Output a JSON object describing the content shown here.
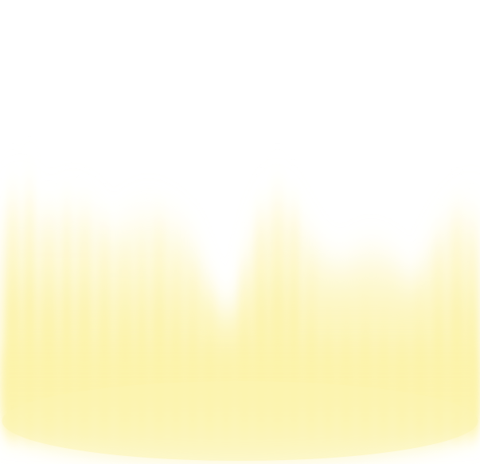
{
  "scene": {
    "description_visible_text": "",
    "colors": {
      "background": "#ffffff",
      "glow_core": "#fdf6b0",
      "glow_mid": "#fbf0a0",
      "glow_soft": "#fff9d2"
    }
  }
}
